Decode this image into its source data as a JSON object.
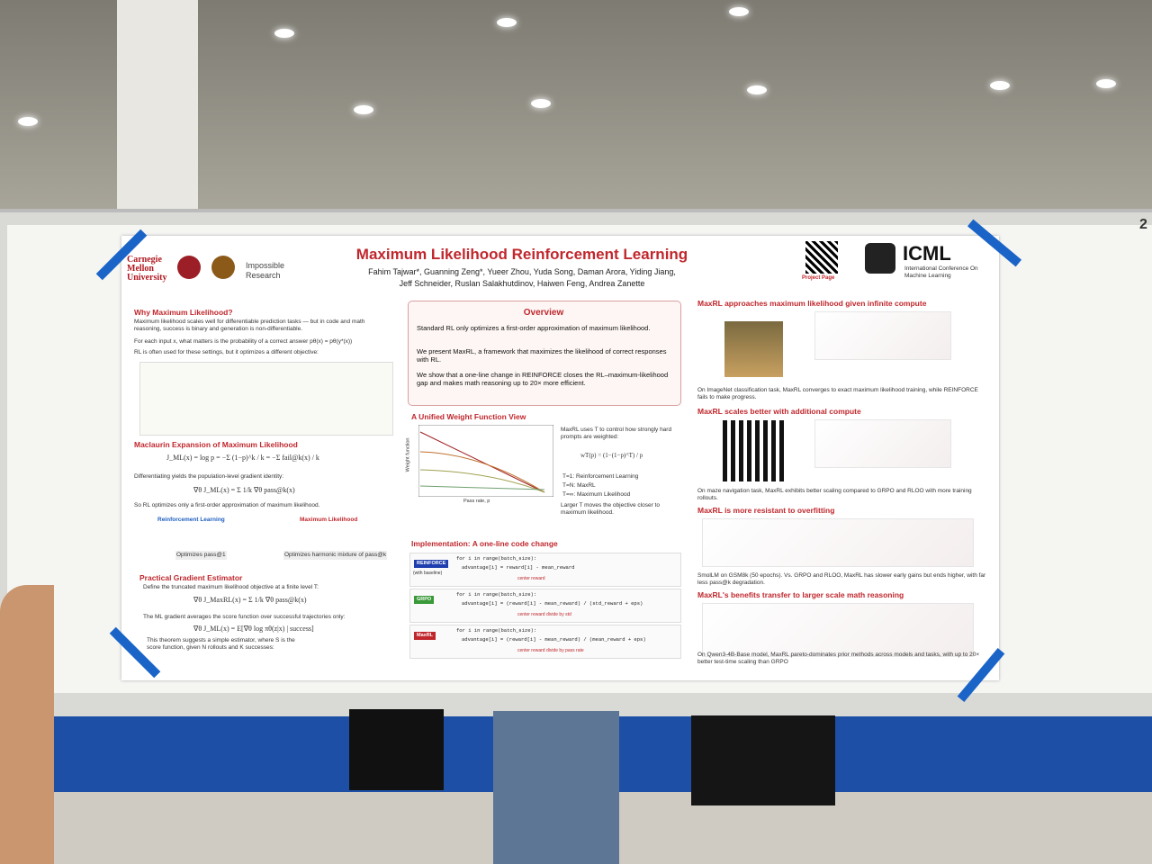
{
  "header": {
    "title": "Maximum Likelihood Reinforcement Learning",
    "authors": [
      "Fahim Tajwar*, Guanning Zeng*, Yueer Zhou, Yuda Song, Daman Arora, Yiding Jiang,",
      "Jeff Schneider, Ruslan Salakhutdinov, Haiwen Feng, Andrea Zanette"
    ],
    "logos": [
      "Carnegie Mellon University",
      "Impossible Research"
    ],
    "qr_caption": "Project Page",
    "conference": "ICML",
    "conference_full": "International Conference On Machine Learning",
    "board_number": "2"
  },
  "left": {
    "why": {
      "heading": "Why Maximum Likelihood?",
      "bullets": [
        "Maximum likelihood scales well for differentiable prediction tasks — but in code and math reasoning, success is binary and generation is non-differentiable.",
        "For each input x, what matters is the probability of a correct answer  pθ(x) = pθ(y*(x))",
        "RL is often used for these settings, but it optimizes a different objective:"
      ]
    },
    "maclaurin": {
      "heading": "Maclaurin Expansion of Maximum Likelihood",
      "formula": "J_ML(x) = log p = −Σ (1−p)^k / k = −Σ fail@k(x) / k",
      "text1": "Differentiating yields the population-level gradient identity:",
      "formula2": "∇θ J_ML(x) = Σ 1/k ∇θ pass@k(x)",
      "text2": "So RL optimizes only a first-order approximation of maximum likelihood.",
      "rl": {
        "title": "Reinforcement Learning",
        "caption": "Optimizes pass@1"
      },
      "ml": {
        "title": "Maximum Likelihood",
        "caption": "Optimizes harmonic mixture of pass@k"
      }
    },
    "estimator": {
      "heading": "Practical Gradient Estimator",
      "text1": "Define the truncated maximum likelihood objective at a finite level T:",
      "formula": "∇θ J_MaxRL(x) = Σ 1/k ∇θ pass@k(x)",
      "text2": "The ML gradient averages the score function over successful trajectories only:",
      "formula2": "∇θ J_ML(x) = E[∇θ log πθ(z|x) | success]",
      "text3": "This theorem suggests a simple estimator, where S is the score function, given N rollouts and K successes:"
    }
  },
  "middle": {
    "overview": {
      "heading": "Overview",
      "bullets": [
        "Standard RL only optimizes a first-order approximation of maximum likelihood.",
        "We present MaxRL, a framework that maximizes the likelihood of correct responses with RL.",
        "We show that a one-line change in REINFORCE closes the RL–maximum-likelihood gap and makes math reasoning up to 20× more efficient."
      ]
    },
    "weight": {
      "heading": "A Unified Weight Function View",
      "text": "MaxRL uses T to control how strongly hard prompts are weighted:",
      "formula": "wT(p) = (1−(1−p)^T) / p",
      "items": [
        "T=1: Reinforcement Learning",
        "T=N: MaxRL",
        "T=∞: Maximum Likelihood"
      ],
      "note": "Larger T moves the objective closer to maximum likelihood.",
      "x_label": "Pass rate, p",
      "y_label": "Weight function"
    },
    "code": {
      "heading": "Implementation: A one-line code change",
      "blocks": [
        {
          "label": "REINFORCE",
          "sub": "(with baseline)",
          "lines": [
            "for i in range(batch_size):",
            "advantage[i] = reward[i] - mean_reward"
          ],
          "note": "center reward"
        },
        {
          "label": "GRPO",
          "lines": [
            "for i in range(batch_size):",
            "advantage[i] = (reward[i] - mean_reward) / (std_reward + eps)"
          ],
          "note": "center reward   divide by std"
        },
        {
          "label": "MaxRL",
          "lines": [
            "for i in range(batch_size):",
            "advantage[i] = (reward[i] - mean_reward) / (mean_reward + eps)"
          ],
          "note": "center reward   divide by pass rate"
        }
      ]
    }
  },
  "right": {
    "sections": [
      {
        "heading": "MaxRL approaches maximum likelihood given infinite compute",
        "caption": "On ImageNet classification task, MaxRL converges to exact maximum likelihood training, while REINFORCE fails to make progress."
      },
      {
        "heading": "MaxRL scales better with additional compute",
        "caption": "On maze navigation task, MaxRL exhibits better scaling compared to GRPO and RLOO with more training rollouts."
      },
      {
        "heading": "MaxRL is more resistant to overfitting",
        "caption": "SmolLM on GSM8k (50 epochs). Vs. GRPO and RLOO, MaxRL has slower early gains but ends higher, with far less pass@k degradation."
      },
      {
        "heading": "MaxRL's benefits transfer to larger scale math reasoning",
        "caption": "On Qwen3-4B-Base model, MaxRL pareto-dominates prior methods across models and tasks, with up to 20× better test-time scaling than GRPO"
      }
    ]
  }
}
